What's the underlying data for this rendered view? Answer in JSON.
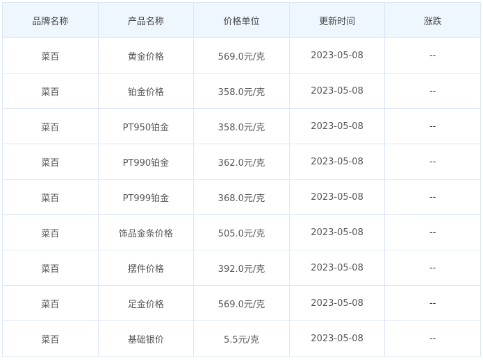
{
  "table": {
    "headers": [
      "品牌名称",
      "产品名称",
      "价格单位",
      "更新时间",
      "涨跌"
    ],
    "rows": [
      [
        "菜百",
        "黄金价格",
        "569.0元/克",
        "2023-05-08",
        "--"
      ],
      [
        "菜百",
        "铂金价格",
        "358.0元/克",
        "2023-05-08",
        "--"
      ],
      [
        "菜百",
        "PT950铂金",
        "358.0元/克",
        "2023-05-08",
        "--"
      ],
      [
        "菜百",
        "PT990铂金",
        "362.0元/克",
        "2023-05-08",
        "--"
      ],
      [
        "菜百",
        "PT999铂金",
        "368.0元/克",
        "2023-05-08",
        "--"
      ],
      [
        "菜百",
        "饰品金条价格",
        "505.0元/克",
        "2023-05-08",
        "--"
      ],
      [
        "菜百",
        "摆件价格",
        "392.0元/克",
        "2023-05-08",
        "--"
      ],
      [
        "菜百",
        "足金价格",
        "569.0元/克",
        "2023-05-08",
        "--"
      ],
      [
        "菜百",
        "基础银价",
        "5.5元/克",
        "2023-05-08",
        "--"
      ]
    ]
  }
}
